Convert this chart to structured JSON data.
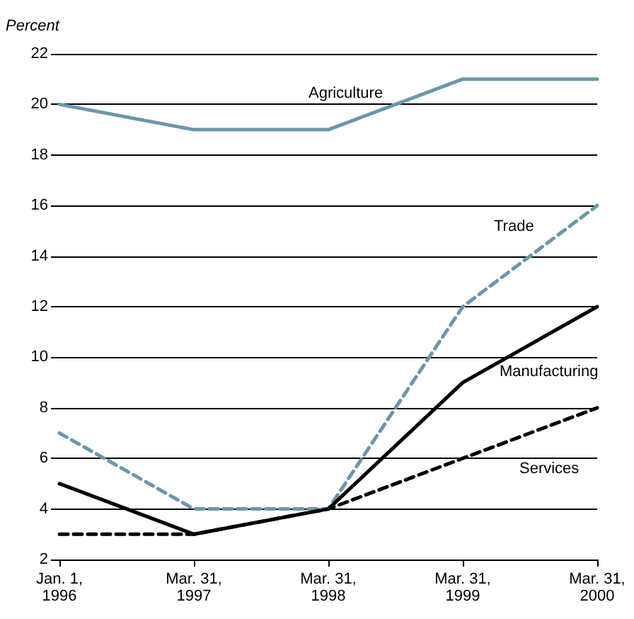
{
  "chart_data": {
    "type": "line",
    "ylabel": "Percent",
    "categories": [
      "Jan. 1,\n1996",
      "Mar. 31,\n1997",
      "Mar. 31,\n1998",
      "Mar. 31,\n1999",
      "Mar. 31,\n2000"
    ],
    "series": [
      {
        "name": "Agriculture",
        "color": "#6a97ab",
        "line_style": "solid",
        "values": [
          20,
          19,
          19,
          21,
          21
        ]
      },
      {
        "name": "Trade",
        "color": "#6a97ab",
        "line_style": "dashed",
        "values": [
          7,
          4,
          4,
          12,
          16
        ]
      },
      {
        "name": "Manufacturing",
        "color": "#000000",
        "line_style": "solid",
        "values": [
          5,
          3,
          4,
          9,
          12
        ]
      },
      {
        "name": "Services",
        "color": "#000000",
        "line_style": "dashed",
        "values": [
          3,
          3,
          4,
          6,
          8
        ]
      }
    ],
    "ylim": [
      2,
      22
    ],
    "yticks": [
      2,
      4,
      6,
      8,
      10,
      12,
      14,
      16,
      18,
      20,
      22
    ],
    "grid": "y",
    "legend": false,
    "marker": "none"
  }
}
